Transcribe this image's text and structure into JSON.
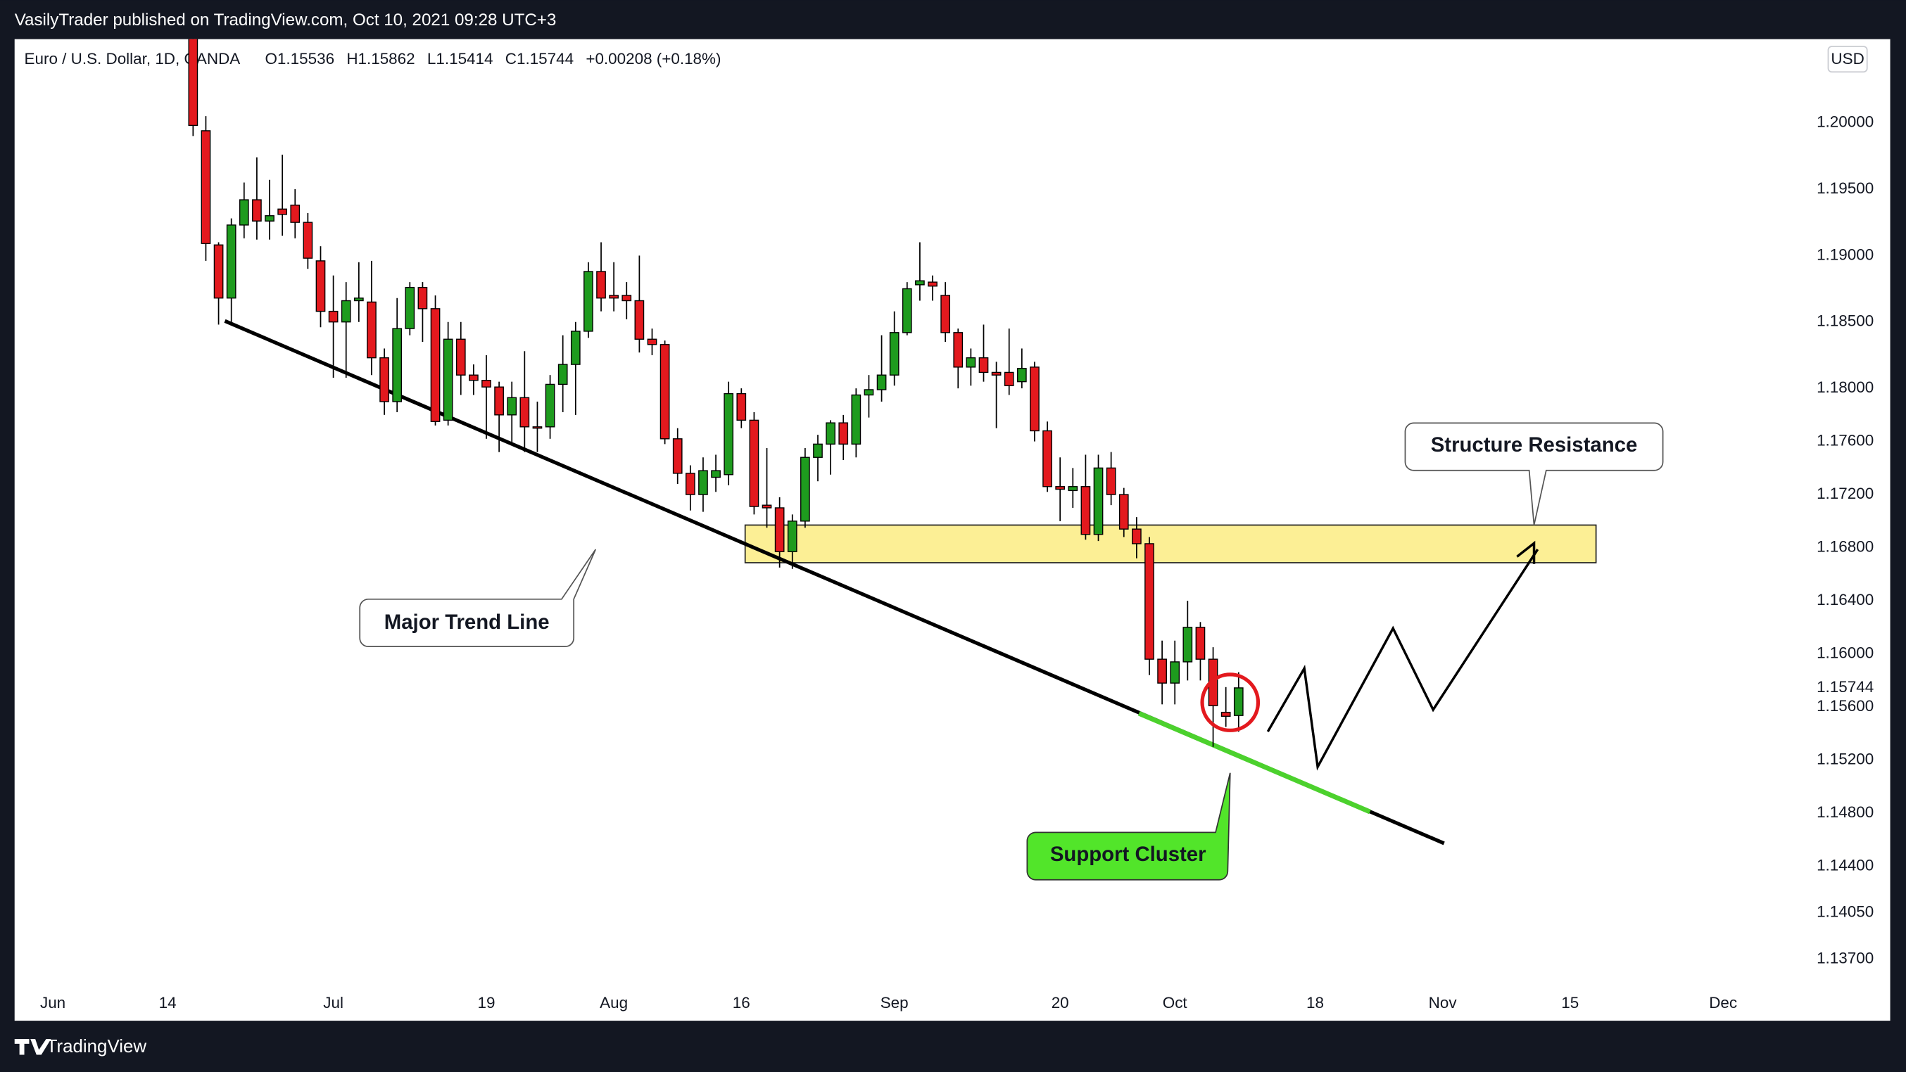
{
  "top_bar": "VasilyTrader published on TradingView.com, Oct 10, 2021 09:28 UTC+3",
  "footer": "TradingView",
  "chart_data": {
    "type": "candlestick",
    "title": "Euro / U.S. Dollar, 1D, OANDA",
    "ohlc_labels": [
      "O1.15536",
      "H1.15862",
      "L1.15414",
      "C1.15744",
      "+0.00208 (+0.18%)"
    ],
    "currency": "USD",
    "up_color": "#1e9b1e",
    "down_color": "#e3191e",
    "grid": false,
    "x": [
      "2021-06-16",
      "2021-06-17",
      "2021-06-18",
      "2021-06-21",
      "2021-06-22",
      "2021-06-23",
      "2021-06-24",
      "2021-06-25",
      "2021-06-28",
      "2021-06-29",
      "2021-06-30",
      "2021-07-01",
      "2021-07-02",
      "2021-07-05",
      "2021-07-06",
      "2021-07-07",
      "2021-07-08",
      "2021-07-09",
      "2021-07-12",
      "2021-07-13",
      "2021-07-14",
      "2021-07-15",
      "2021-07-16",
      "2021-07-19",
      "2021-07-20",
      "2021-07-21",
      "2021-07-22",
      "2021-07-23",
      "2021-07-26",
      "2021-07-27",
      "2021-07-28",
      "2021-07-29",
      "2021-07-30",
      "2021-08-02",
      "2021-08-03",
      "2021-08-04",
      "2021-08-05",
      "2021-08-06",
      "2021-08-09",
      "2021-08-10",
      "2021-08-11",
      "2021-08-12",
      "2021-08-13",
      "2021-08-16",
      "2021-08-17",
      "2021-08-18",
      "2021-08-19",
      "2021-08-20",
      "2021-08-23",
      "2021-08-24",
      "2021-08-25",
      "2021-08-26",
      "2021-08-27",
      "2021-08-30",
      "2021-08-31",
      "2021-09-01",
      "2021-09-02",
      "2021-09-03",
      "2021-09-06",
      "2021-09-07",
      "2021-09-08",
      "2021-09-09",
      "2021-09-10",
      "2021-09-13",
      "2021-09-14",
      "2021-09-15",
      "2021-09-16",
      "2021-09-17",
      "2021-09-20",
      "2021-09-21",
      "2021-09-22",
      "2021-09-23",
      "2021-09-24",
      "2021-09-27",
      "2021-09-28",
      "2021-09-29",
      "2021-09-30",
      "2021-10-01",
      "2021-10-04",
      "2021-10-05",
      "2021-10-06",
      "2021-10-07",
      "2021-10-08"
    ],
    "open": [
      1.2125,
      1.1994,
      1.1908,
      1.1868,
      1.1923,
      1.1942,
      1.1926,
      1.1935,
      1.1938,
      1.1925,
      1.1896,
      1.1858,
      1.185,
      1.1866,
      1.1865,
      1.1823,
      1.179,
      1.1845,
      1.1876,
      1.186,
      1.1776,
      1.1837,
      1.181,
      1.1806,
      1.1801,
      1.178,
      1.1793,
      1.1771,
      1.1771,
      1.1803,
      1.1818,
      1.1843,
      1.1888,
      1.187,
      1.187,
      1.1866,
      1.1837,
      1.1833,
      1.1762,
      1.1736,
      1.172,
      1.1733,
      1.1735,
      1.1796,
      1.1776,
      1.1712,
      1.171,
      1.1677,
      1.17,
      1.1748,
      1.1758,
      1.1774,
      1.1758,
      1.1795,
      1.1799,
      1.181,
      1.1842,
      1.1878,
      1.188,
      1.187,
      1.1842,
      1.1816,
      1.1823,
      1.1812,
      1.1812,
      1.1805,
      1.1816,
      1.1768,
      1.1726,
      1.1723,
      1.1726,
      1.169,
      1.174,
      1.172,
      1.1694,
      1.1683,
      1.1596,
      1.1578,
      1.1594,
      1.162,
      1.1596,
      1.1556,
      1.15536
    ],
    "high": [
      1.2138,
      1.2005,
      1.191,
      1.1928,
      1.1955,
      1.1974,
      1.1957,
      1.1976,
      1.195,
      1.1932,
      1.1907,
      1.1885,
      1.188,
      1.1895,
      1.1896,
      1.183,
      1.1868,
      1.188,
      1.188,
      1.187,
      1.185,
      1.185,
      1.1818,
      1.1825,
      1.1805,
      1.1805,
      1.1828,
      1.179,
      1.181,
      1.184,
      1.185,
      1.1895,
      1.191,
      1.1895,
      1.188,
      1.19,
      1.1845,
      1.1836,
      1.177,
      1.1742,
      1.1748,
      1.175,
      1.1805,
      1.18,
      1.1782,
      1.1755,
      1.1718,
      1.1705,
      1.1755,
      1.1765,
      1.1776,
      1.178,
      1.18,
      1.181,
      1.184,
      1.1858,
      1.188,
      1.191,
      1.1885,
      1.188,
      1.1845,
      1.183,
      1.1848,
      1.182,
      1.1845,
      1.183,
      1.182,
      1.1775,
      1.1748,
      1.174,
      1.175,
      1.175,
      1.1752,
      1.1725,
      1.1703,
      1.1688,
      1.161,
      1.161,
      1.164,
      1.1624,
      1.1605,
      1.1575,
      1.15862
    ],
    "low": [
      1.199,
      1.1896,
      1.1848,
      1.185,
      1.1913,
      1.1912,
      1.1912,
      1.1915,
      1.1913,
      1.189,
      1.1846,
      1.1808,
      1.1808,
      1.185,
      1.181,
      1.178,
      1.1782,
      1.184,
      1.1835,
      1.1772,
      1.1772,
      1.1795,
      1.1795,
      1.1762,
      1.1752,
      1.1758,
      1.1752,
      1.1752,
      1.1762,
      1.1782,
      1.178,
      1.1838,
      1.1858,
      1.1858,
      1.1852,
      1.1827,
      1.1825,
      1.1758,
      1.1728,
      1.1708,
      1.1707,
      1.1722,
      1.1727,
      1.177,
      1.1705,
      1.1695,
      1.1665,
      1.1664,
      1.1695,
      1.173,
      1.1735,
      1.1746,
      1.1748,
      1.1778,
      1.179,
      1.1802,
      1.184,
      1.1866,
      1.1866,
      1.1835,
      1.18,
      1.1802,
      1.1805,
      1.177,
      1.1795,
      1.18,
      1.176,
      1.1722,
      1.17,
      1.171,
      1.1686,
      1.1685,
      1.1712,
      1.1688,
      1.1672,
      1.1584,
      1.1562,
      1.1562,
      1.158,
      1.158,
      1.153,
      1.1545,
      1.15414
    ],
    "close": [
      1.1998,
      1.1909,
      1.1868,
      1.1923,
      1.1942,
      1.1926,
      1.193,
      1.1931,
      1.1925,
      1.1898,
      1.1858,
      1.185,
      1.1866,
      1.1868,
      1.1823,
      1.179,
      1.1845,
      1.1876,
      1.186,
      1.1775,
      1.1837,
      1.181,
      1.1806,
      1.1801,
      1.178,
      1.1793,
      1.1771,
      1.177,
      1.1803,
      1.1818,
      1.1843,
      1.1888,
      1.1868,
      1.1868,
      1.1866,
      1.1837,
      1.1833,
      1.1762,
      1.1736,
      1.172,
      1.1738,
      1.1738,
      1.1796,
      1.1776,
      1.1711,
      1.171,
      1.1677,
      1.17,
      1.1748,
      1.1758,
      1.1774,
      1.1758,
      1.1795,
      1.1799,
      1.181,
      1.1842,
      1.1875,
      1.1881,
      1.1877,
      1.1842,
      1.1816,
      1.1823,
      1.1812,
      1.181,
      1.1802,
      1.1815,
      1.1768,
      1.1726,
      1.1724,
      1.1726,
      1.169,
      1.174,
      1.172,
      1.1694,
      1.1683,
      1.1596,
      1.1578,
      1.1594,
      1.162,
      1.1596,
      1.1561,
      1.1553,
      1.15744
    ],
    "last_price": {
      "value": 1.15744,
      "label": "1.15744"
    },
    "xlim": [
      "2021-05-27",
      "2021-12-08"
    ],
    "xticks": [
      {
        "value": "2021-06-01",
        "label": "Jun"
      },
      {
        "value": "2021-06-14",
        "label": "14"
      },
      {
        "value": "2021-07-01",
        "label": "Jul"
      },
      {
        "value": "2021-07-19",
        "label": "19"
      },
      {
        "value": "2021-08-02",
        "label": "Aug"
      },
      {
        "value": "2021-08-16",
        "label": "16"
      },
      {
        "value": "2021-09-01",
        "label": "Sep"
      },
      {
        "value": "2021-09-20",
        "label": "20"
      },
      {
        "value": "2021-10-01",
        "label": "Oct"
      },
      {
        "value": "2021-10-18",
        "label": "18"
      },
      {
        "value": "2021-11-01",
        "label": "Nov"
      },
      {
        "value": "2021-11-15",
        "label": "15"
      },
      {
        "value": "2021-12-01",
        "label": "Dec"
      }
    ],
    "ylim": [
      1.1353,
      1.2063
    ],
    "yticks": [
      {
        "value": 1.2,
        "label": "1.20000"
      },
      {
        "value": 1.195,
        "label": "1.19500"
      },
      {
        "value": 1.19,
        "label": "1.19000"
      },
      {
        "value": 1.185,
        "label": "1.18500"
      },
      {
        "value": 1.18,
        "label": "1.18000"
      },
      {
        "value": 1.176,
        "label": "1.17600"
      },
      {
        "value": 1.172,
        "label": "1.17200"
      },
      {
        "value": 1.168,
        "label": "1.16800"
      },
      {
        "value": 1.164,
        "label": "1.16400"
      },
      {
        "value": 1.16,
        "label": "1.16000"
      },
      {
        "value": 1.156,
        "label": "1.15600"
      },
      {
        "value": 1.152,
        "label": "1.15200"
      },
      {
        "value": 1.148,
        "label": "1.14800"
      },
      {
        "value": 1.144,
        "label": "1.14400"
      },
      {
        "value": 1.1405,
        "label": "1.14050"
      },
      {
        "value": 1.137,
        "label": "1.13700"
      }
    ],
    "annotations": [
      "Major Trend Line",
      "Structure Resistance",
      "Support Cluster"
    ]
  }
}
